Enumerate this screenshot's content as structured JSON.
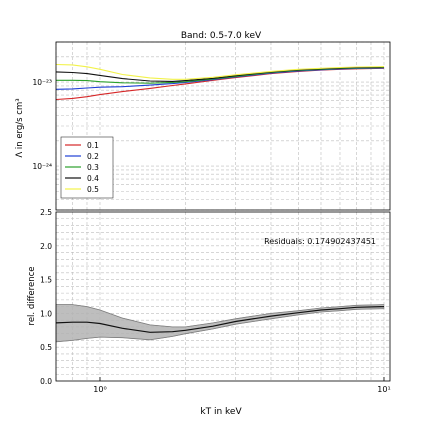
{
  "chart_data": [
    {
      "type": "line",
      "title": "Band: 0.5-7.0 keV",
      "xlabel": "",
      "ylabel": "Λ in erg/s cm³",
      "xscale": "log",
      "yscale": "log",
      "xlim": [
        0.7,
        10.5
      ],
      "ylim": [
        3e-25,
        3e-23
      ],
      "x_ticks": [
        "10⁰",
        "10¹"
      ],
      "y_ticks": [
        "10⁻²³",
        "10⁻²⁴"
      ],
      "grid": true,
      "legend": "left",
      "x": [
        0.7,
        0.8,
        0.9,
        1.0,
        1.2,
        1.5,
        1.8,
        2.0,
        2.5,
        3.0,
        4.0,
        5.0,
        6.0,
        7.0,
        8.0,
        10.0
      ],
      "series": [
        {
          "name": "0.1",
          "color": "#d62728",
          "values": [
            6.2e-24,
            6.4e-24,
            6.7e-24,
            7.1e-24,
            7.7e-24,
            8.4e-24,
            9.1e-24,
            9.5e-24,
            1.05e-23,
            1.13e-23,
            1.26e-23,
            1.34e-23,
            1.39e-23,
            1.42e-23,
            1.44e-23,
            1.46e-23
          ]
        },
        {
          "name": "0.2",
          "color": "#1f3fd6",
          "values": [
            8.2e-24,
            8.3e-24,
            8.5e-24,
            8.7e-24,
            8.8e-24,
            9.2e-24,
            9.6e-24,
            9.9e-24,
            1.07e-23,
            1.15e-23,
            1.28e-23,
            1.36e-23,
            1.4e-23,
            1.43e-23,
            1.45e-23,
            1.47e-23
          ]
        },
        {
          "name": "0.3",
          "color": "#2ca02c",
          "values": [
            1.05e-23,
            1.05e-23,
            1.04e-23,
            1.01e-23,
            9.8e-24,
            9.7e-24,
            9.9e-24,
            1.01e-23,
            1.09e-23,
            1.17e-23,
            1.3e-23,
            1.38e-23,
            1.42e-23,
            1.45e-23,
            1.47e-23,
            1.49e-23
          ]
        },
        {
          "name": "0.4",
          "color": "#111111",
          "values": [
            1.32e-23,
            1.3e-23,
            1.26e-23,
            1.2e-23,
            1.1e-23,
            1.03e-23,
            1.02e-23,
            1.04e-23,
            1.11e-23,
            1.19e-23,
            1.32e-23,
            1.4e-23,
            1.44e-23,
            1.47e-23,
            1.49e-23,
            1.51e-23
          ]
        },
        {
          "name": "0.5",
          "color": "#f2f24a",
          "values": [
            1.62e-23,
            1.6e-23,
            1.52e-23,
            1.42e-23,
            1.23e-23,
            1.12e-23,
            1.08e-23,
            1.08e-23,
            1.14e-23,
            1.22e-23,
            1.34e-23,
            1.42e-23,
            1.46e-23,
            1.49e-23,
            1.51e-23,
            1.53e-23
          ]
        }
      ]
    },
    {
      "type": "line",
      "title": "",
      "xlabel": "kT in keV",
      "ylabel": "rel. difference",
      "xscale": "log",
      "xlim": [
        0.7,
        10.5
      ],
      "ylim": [
        0.0,
        2.5
      ],
      "x_ticks": [
        "10⁰",
        "10¹"
      ],
      "y_ticks": [
        "0.0",
        "0.5",
        "1.0",
        "1.5",
        "2.0",
        "2.5"
      ],
      "grid": true,
      "annotation": "Residuals: 0.174902437451",
      "x": [
        0.7,
        0.8,
        0.9,
        1.0,
        1.2,
        1.5,
        1.8,
        2.0,
        2.5,
        3.0,
        4.0,
        5.0,
        6.0,
        7.0,
        8.0,
        10.0
      ],
      "series": [
        {
          "name": "mean",
          "color": "#111111",
          "values": [
            0.86,
            0.87,
            0.87,
            0.85,
            0.78,
            0.72,
            0.73,
            0.75,
            0.81,
            0.88,
            0.96,
            1.01,
            1.05,
            1.07,
            1.09,
            1.1
          ]
        },
        {
          "name": "upper",
          "color": "#888888",
          "values": [
            1.13,
            1.13,
            1.1,
            1.05,
            0.93,
            0.83,
            0.8,
            0.8,
            0.86,
            0.92,
            1.0,
            1.04,
            1.08,
            1.1,
            1.12,
            1.13
          ]
        },
        {
          "name": "lower",
          "color": "#888888",
          "values": [
            0.58,
            0.6,
            0.63,
            0.65,
            0.64,
            0.61,
            0.66,
            0.7,
            0.77,
            0.84,
            0.92,
            0.98,
            1.02,
            1.04,
            1.06,
            1.07
          ]
        }
      ]
    }
  ]
}
